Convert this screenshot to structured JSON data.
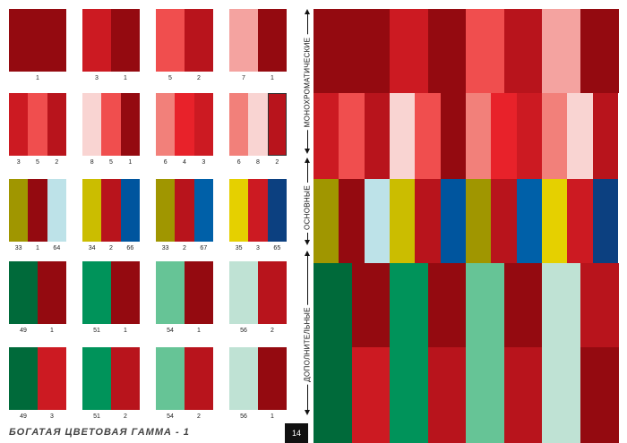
{
  "colors": {
    "1": "#940a10",
    "2": "#b8141c",
    "3": "#cc1a22",
    "4": "#e8222a",
    "5": "#f04e4e",
    "6": "#f2807a",
    "7": "#f4a3a0",
    "8": "#f9d4d2",
    "33": "#a09600",
    "34": "#cbbd00",
    "35": "#e5d000",
    "49": "#006a3a",
    "51": "#00935a",
    "54": "#66c496",
    "56": "#bfe2d4",
    "64": "#bde2e8",
    "65": "#0c4080",
    "66": "#00559e",
    "67": "#0060a8"
  },
  "swatches": [
    [
      [
        [
          "1",
          "1"
        ]
      ],
      [
        [
          "3",
          "1"
        ]
      ],
      [
        [
          "5",
          "2"
        ]
      ],
      [
        [
          "7",
          "1"
        ]
      ]
    ],
    [
      [
        [
          "3",
          "5",
          "2"
        ]
      ],
      [
        [
          "8",
          "5",
          "1"
        ]
      ],
      [
        [
          "6",
          "4",
          "3"
        ]
      ],
      [
        [
          "6",
          "8",
          "2"
        ]
      ]
    ],
    [
      [
        [
          "33",
          "1",
          "64"
        ]
      ],
      [
        [
          "34",
          "2",
          "66"
        ]
      ],
      [
        [
          "33",
          "2",
          "67"
        ]
      ],
      [
        [
          "35",
          "3",
          "65"
        ]
      ]
    ],
    [
      [
        [
          "49",
          "1"
        ]
      ],
      [
        [
          "51",
          "1"
        ]
      ],
      [
        [
          "54",
          "1"
        ]
      ],
      [
        [
          "56",
          "2"
        ]
      ]
    ],
    [
      [
        [
          "49",
          "3"
        ]
      ],
      [
        [
          "51",
          "2"
        ]
      ],
      [
        [
          "54",
          "2"
        ]
      ],
      [
        [
          "56",
          "1"
        ]
      ]
    ]
  ],
  "labels": {
    "mono": "МОНОХРОМАТИЧЕСКИЕ",
    "basic": "ОСНОВНЫЕ",
    "complementary": "ДОПОЛНИТЕЛЬНЫЕ"
  },
  "footer": {
    "title": "БОГАТАЯ ЦВЕТОВАЯ ГАММА - 1",
    "page": "14"
  }
}
